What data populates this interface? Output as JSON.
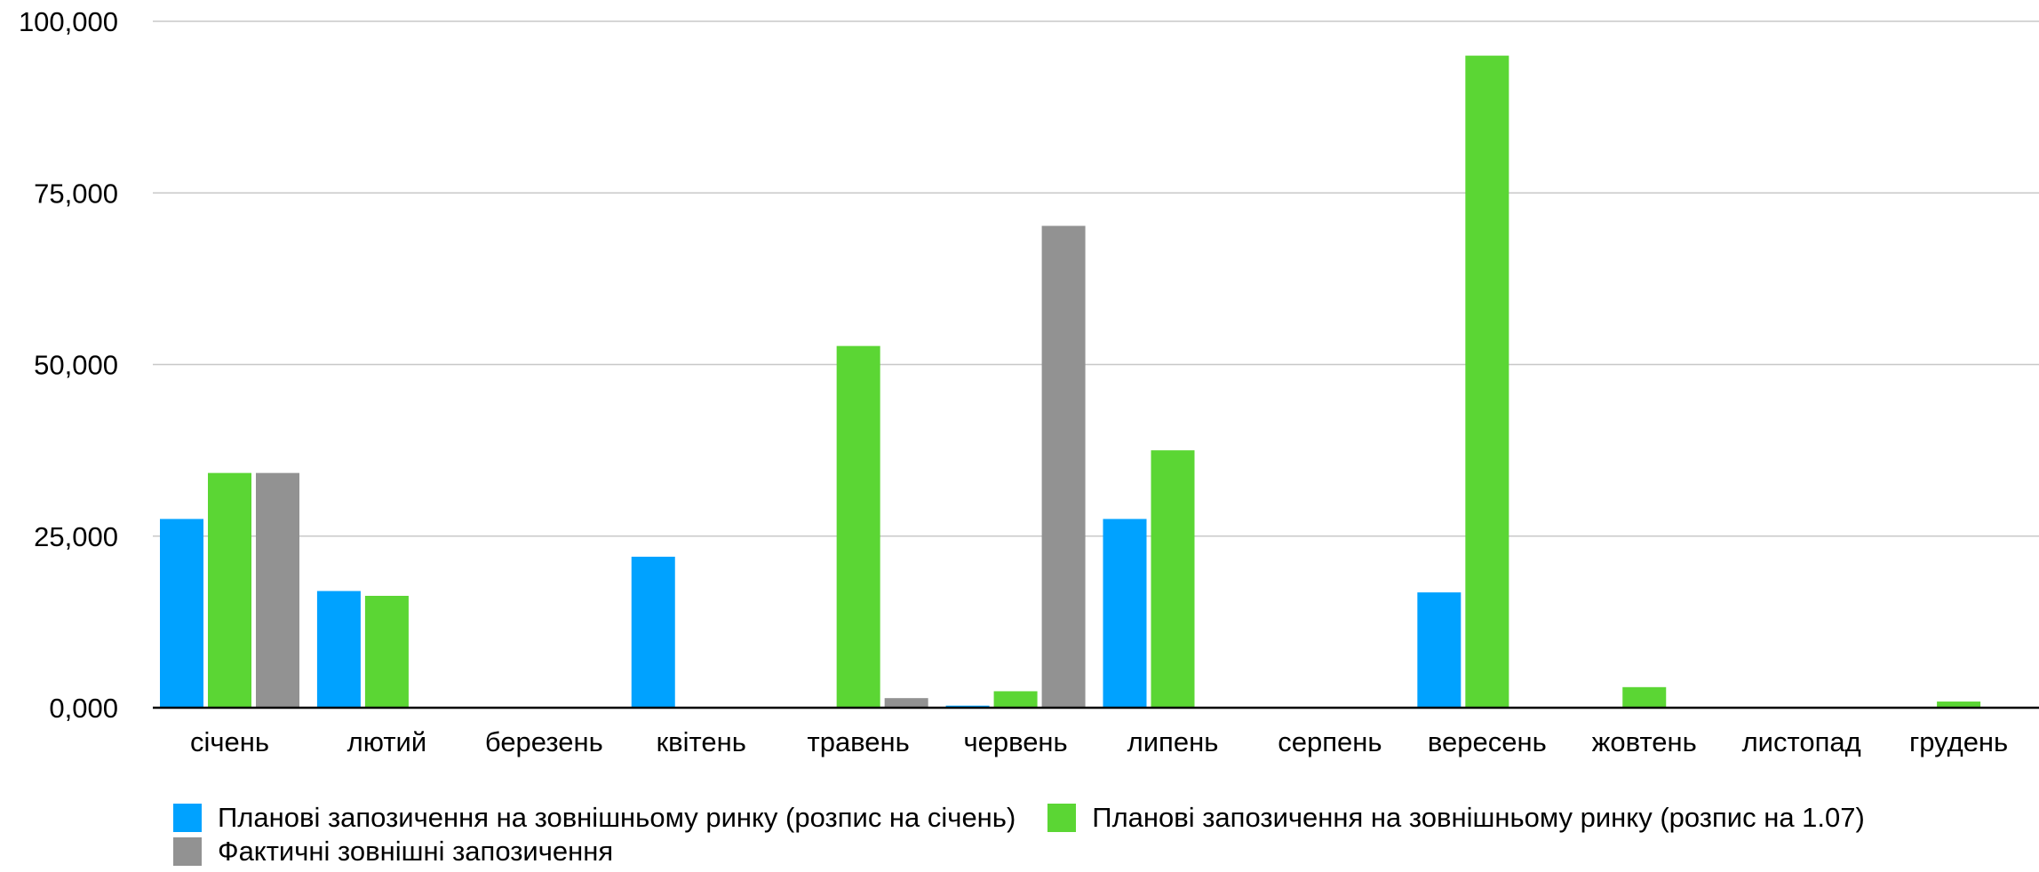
{
  "chart_data": {
    "type": "bar",
    "categories": [
      "січень",
      "лютий",
      "березень",
      "квітень",
      "травень",
      "червень",
      "липень",
      "серпень",
      "вересень",
      "жовтень",
      "листопад",
      "грудень"
    ],
    "series": [
      {
        "name": "Планові запозичення на зовнішньому ринку (розпис на січень)",
        "color": "#00a2ff",
        "values": [
          27500,
          17000,
          0,
          22000,
          0,
          300,
          27500,
          0,
          16800,
          0,
          0,
          0
        ]
      },
      {
        "name": "Планові запозичення на зовнішньому ринку (розпис на 1.07)",
        "color": "#5bd634",
        "values": [
          34200,
          16300,
          0,
          0,
          52700,
          2400,
          37500,
          0,
          95000,
          3000,
          0,
          900
        ]
      },
      {
        "name": "Фактичні зовнішні запозичення",
        "color": "#929292",
        "values": [
          34200,
          0,
          0,
          0,
          1400,
          70200,
          0,
          0,
          0,
          0,
          0,
          0
        ]
      }
    ],
    "y_ticks": [
      0,
      25000,
      50000,
      75000,
      100000
    ],
    "y_tick_labels": [
      "0,000",
      "25,000",
      "50,000",
      "75,000",
      "100,000"
    ],
    "ylim": [
      0,
      100000
    ],
    "grid": true,
    "legend_position": "bottom-left"
  }
}
